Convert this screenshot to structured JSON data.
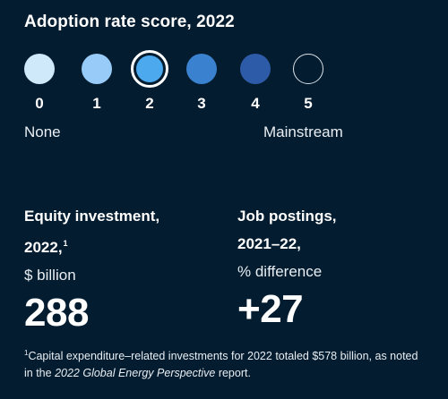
{
  "header": {
    "title": "Adoption rate score, 2022"
  },
  "scale": {
    "selected_value": 2,
    "dots": [
      {
        "label": "0",
        "color": "#cfe9fb"
      },
      {
        "label": "1",
        "color": "#98cbf7"
      },
      {
        "label": "2",
        "color": "#4ca9ee"
      },
      {
        "label": "3",
        "color": "#3a82cf"
      },
      {
        "label": "4",
        "color": "#2e5ba8"
      },
      {
        "label": "5",
        "color": "#041c2f"
      }
    ],
    "min_label": "None",
    "max_label": "Mainstream"
  },
  "metrics": {
    "equity": {
      "line1": "Equity investment,",
      "line2": "2022,",
      "footnote_marker": "1",
      "unit": "$ billion",
      "value": "288"
    },
    "jobs": {
      "line1": "Job postings,",
      "line2": "2021–22,",
      "unit": "% difference",
      "value": "+27"
    }
  },
  "footnote": {
    "marker": "1",
    "text_before": "Capital expenditure–related investments for 2022 totaled $578 billion, as noted in the ",
    "italic": "2022 Global Energy Perspective",
    "text_after": " report."
  },
  "colors": {
    "background": "#041c2f",
    "text": "#ffffff"
  }
}
